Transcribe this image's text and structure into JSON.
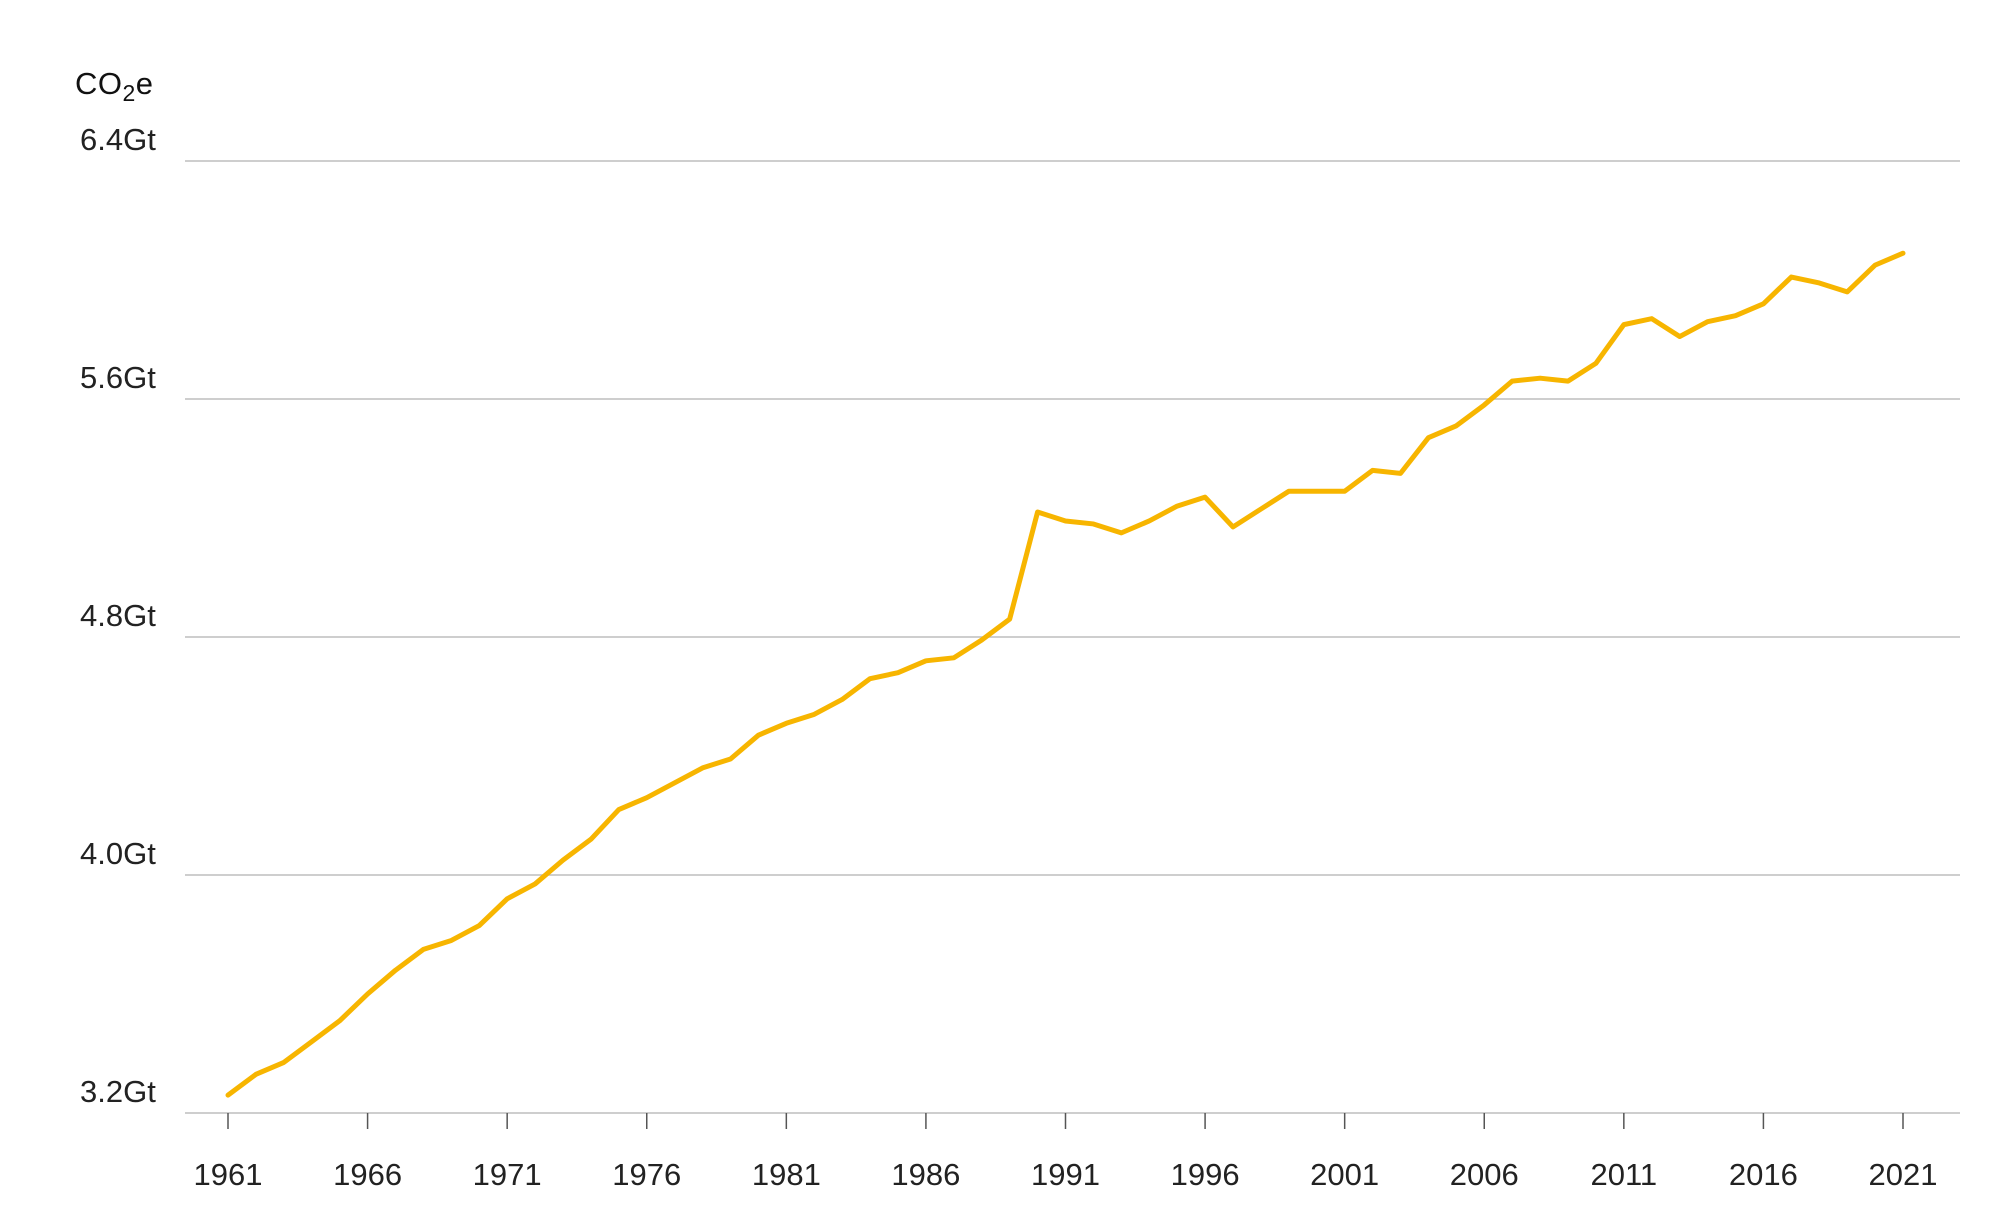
{
  "unit_label": {
    "main": "CO",
    "sub": "2",
    "suffix": "e"
  },
  "colors": {
    "line": "#F7B500",
    "grid": "#bdbdbd",
    "text": "#222222"
  },
  "chart_data": {
    "type": "line",
    "title": "",
    "xlabel": "",
    "ylabel": "CO2e",
    "xlim": [
      1961,
      2021
    ],
    "ylim": [
      3.2,
      6.4
    ],
    "yticks": [
      3.2,
      4.0,
      4.8,
      5.6,
      6.4
    ],
    "ytick_labels": [
      "3.2Gt",
      "4.0Gt",
      "4.8Gt",
      "5.6Gt",
      "6.4Gt"
    ],
    "xticks": [
      1961,
      1966,
      1971,
      1976,
      1981,
      1986,
      1991,
      1996,
      2001,
      2006,
      2011,
      2016,
      2021
    ],
    "xtick_labels": [
      "1961",
      "1966",
      "1971",
      "1976",
      "1981",
      "1986",
      "1991",
      "1996",
      "2001",
      "2006",
      "2011",
      "2016",
      "2021"
    ],
    "grid": "horizontal",
    "series": [
      {
        "x": [
          1961,
          1962,
          1963,
          1964,
          1965,
          1966,
          1967,
          1968,
          1969,
          1970,
          1971,
          1972,
          1973,
          1974,
          1975,
          1976,
          1977,
          1978,
          1979,
          1980,
          1981,
          1982,
          1983,
          1984,
          1985,
          1986,
          1987,
          1988,
          1989,
          1990,
          1991,
          1992,
          1993,
          1994,
          1995,
          1996,
          1997,
          1998,
          1999,
          2000,
          2001,
          2002,
          2003,
          2004,
          2005,
          2006,
          2007,
          2008,
          2009,
          2010,
          2011,
          2012,
          2013,
          2014,
          2015,
          2016,
          2017,
          2018,
          2019,
          2020,
          2021
        ],
        "values": [
          3.26,
          3.33,
          3.37,
          3.44,
          3.51,
          3.6,
          3.68,
          3.75,
          3.78,
          3.83,
          3.92,
          3.97,
          4.05,
          4.12,
          4.22,
          4.26,
          4.31,
          4.36,
          4.39,
          4.47,
          4.51,
          4.54,
          4.59,
          4.66,
          4.68,
          4.72,
          4.73,
          4.79,
          4.86,
          5.22,
          5.19,
          5.18,
          5.15,
          5.19,
          5.24,
          5.27,
          5.17,
          5.23,
          5.29,
          5.29,
          5.29,
          5.36,
          5.35,
          5.47,
          5.51,
          5.58,
          5.66,
          5.67,
          5.66,
          5.72,
          5.85,
          5.87,
          5.81,
          5.86,
          5.88,
          5.92,
          6.01,
          5.99,
          5.96,
          6.05,
          6.09
        ]
      }
    ]
  }
}
